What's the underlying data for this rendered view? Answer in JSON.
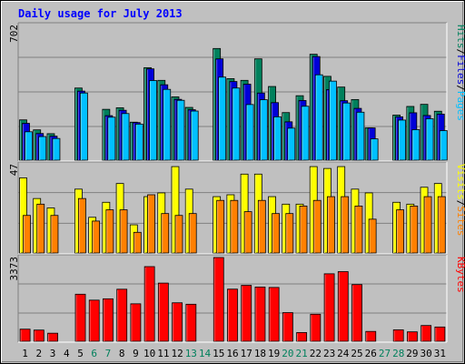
{
  "chart_data": {
    "type": "bar",
    "title": "Daily usage for July 2013",
    "colors": {
      "background": "#C0C0C0",
      "title": "#0000FF",
      "hits": "#00805C",
      "files": "#0000D8",
      "pages": "#00C0FF",
      "visits": "#FFFF00",
      "sites": "#FF8000",
      "kbytes": "#FF0000",
      "weekday_label": "#000000",
      "weekend_label": "#00805C"
    },
    "days": [
      "1",
      "2",
      "3",
      "4",
      "5",
      "6",
      "7",
      "8",
      "9",
      "10",
      "11",
      "12",
      "13",
      "14",
      "15",
      "16",
      "17",
      "18",
      "19",
      "20",
      "21",
      "22",
      "23",
      "24",
      "25",
      "26",
      "27",
      "28",
      "29",
      "30",
      "31"
    ],
    "weekend_days": [
      "6",
      "7",
      "13",
      "14",
      "20",
      "21",
      "27",
      "28"
    ],
    "panels": [
      {
        "name": "hits-files-pages",
        "ymax_label": "702",
        "ymax": 702,
        "legend": [
          {
            "text": "Pages",
            "color": "#00C0FF"
          },
          {
            "text": "/",
            "color": "#000000"
          },
          {
            "text": "Files",
            "color": "#0000D8"
          },
          {
            "text": "/",
            "color": "#000000"
          },
          {
            "text": "Hits",
            "color": "#00805C"
          }
        ],
        "series": [
          {
            "name": "Hits",
            "color": "#00805C",
            "values": [
              210,
              158,
              138,
              0,
              376,
              0,
              265,
              273,
              198,
              482,
              416,
              330,
              275,
              0,
              582,
              425,
              416,
              528,
              384,
              248,
              336,
              552,
              437,
              381,
              316,
              168,
              0,
              235,
              280,
              291,
              255
            ]
          },
          {
            "name": "Files",
            "color": "#0000D8",
            "values": [
              192,
              139,
              125,
              0,
              360,
              0,
              232,
              260,
              196,
              476,
              393,
              317,
              263,
              0,
              528,
              410,
              396,
              350,
              300,
              200,
              311,
              540,
              368,
              310,
              270,
              168,
              0,
              226,
              247,
              233,
              240
            ]
          },
          {
            "name": "Pages",
            "color": "#00C0FF",
            "values": [
              148,
              123,
              113,
              0,
              350,
              0,
              224,
              243,
              188,
              415,
              369,
              312,
              256,
              0,
              433,
              376,
              290,
              315,
              226,
              167,
              281,
              445,
              412,
              298,
              250,
              111,
              0,
              209,
              159,
              216,
              154
            ]
          }
        ]
      },
      {
        "name": "visits-sites",
        "ymax_label": "47",
        "ymax": 47,
        "legend": [
          {
            "text": "Sites",
            "color": "#FF8000"
          },
          {
            "text": "/",
            "color": "#000000"
          },
          {
            "text": "Visits",
            "color": "#FFFF00"
          }
        ],
        "series": [
          {
            "name": "Visits",
            "color": "#FFFF00",
            "values": [
              40,
              29,
              24,
              0,
              34,
              19,
              27,
              37,
              15,
              30,
              32,
              46,
              34,
              0,
              30,
              31,
              42,
              42,
              30,
              26,
              26,
              46,
              45,
              46,
              34,
              32,
              0,
              27,
              26,
              35,
              37
            ]
          },
          {
            "name": "Sites",
            "color": "#FF8000",
            "values": [
              20,
              26,
              20,
              0,
              29,
              17,
              23,
              23,
              11,
              31,
              21,
              20,
              21,
              0,
              28,
              28,
              22,
              28,
              21,
              21,
              25,
              28,
              30,
              30,
              25,
              18,
              0,
              23,
              25,
              30,
              30
            ]
          }
        ]
      },
      {
        "name": "kbytes",
        "ymax_label": "3373",
        "ymax": 3373,
        "legend": [
          {
            "text": "KBytes",
            "color": "#FF0000"
          }
        ],
        "series": [
          {
            "name": "KBytes",
            "color": "#FF0000",
            "values": [
              487,
              451,
              324,
              0,
              1895,
              1656,
              1710,
              2096,
              1509,
              3007,
              2343,
              1550,
              1491,
              0,
              3373,
              2100,
              2253,
              2184,
              2168,
              1154,
              351,
              1089,
              2718,
              2805,
              2284,
              396,
              0,
              460,
              379,
              635,
              574
            ]
          }
        ]
      }
    ]
  }
}
